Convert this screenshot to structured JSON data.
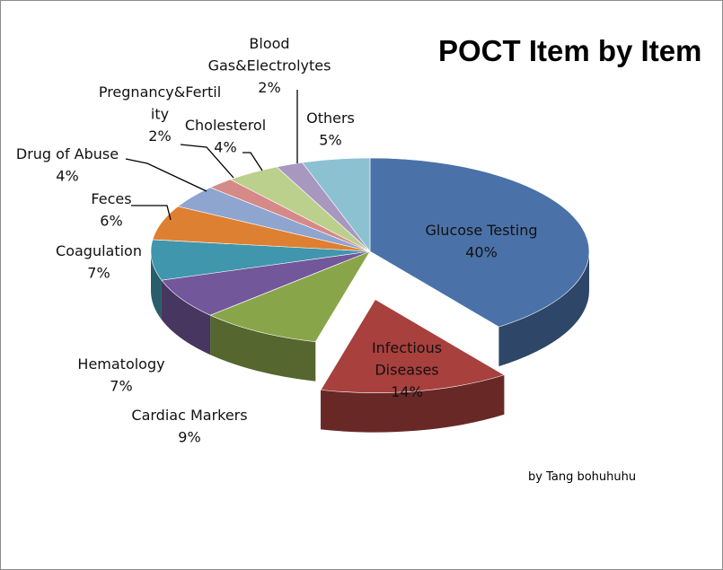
{
  "chart_data": {
    "type": "pie",
    "title": "POCT Item by Item",
    "subtitle": "",
    "annotation": "by Tang bohuhuhu",
    "explode": [
      "Infectious Diseases"
    ],
    "slices": [
      {
        "name": "Glucose Testing",
        "lines": [
          "Glucose Testing",
          "40%"
        ],
        "value": 40,
        "color": "#4a72a8"
      },
      {
        "name": "Infectious Diseases",
        "lines": [
          "Infectious",
          "Diseases",
          "14%"
        ],
        "value": 14,
        "color": "#a8403d"
      },
      {
        "name": "Cardiac Markers",
        "lines": [
          "Cardiac Markers",
          "9%"
        ],
        "value": 9,
        "color": "#89a54a"
      },
      {
        "name": "Hematology",
        "lines": [
          "Hematology",
          "7%"
        ],
        "value": 7,
        "color": "#72579a"
      },
      {
        "name": "Coagulation",
        "lines": [
          "Coagulation",
          "7%"
        ],
        "value": 7,
        "color": "#4096ad"
      },
      {
        "name": "Feces",
        "lines": [
          "Feces",
          "6%"
        ],
        "value": 6,
        "color": "#de8032"
      },
      {
        "name": "Drug of Abuse",
        "lines": [
          "Drug of Abuse",
          "4%"
        ],
        "value": 4,
        "color": "#8ea5d0"
      },
      {
        "name": "Pregnancy&Fertility",
        "lines": [
          "Pregnancy&Fertil",
          "ity",
          "2%"
        ],
        "value": 2,
        "color": "#d68a88"
      },
      {
        "name": "Cholesterol",
        "lines": [
          "Cholesterol",
          "4%"
        ],
        "value": 4,
        "color": "#bcd08d"
      },
      {
        "name": "Blood Gas&Electrolytes",
        "lines": [
          "Blood",
          "Gas&Electrolytes",
          "2%"
        ],
        "value": 2,
        "color": "#a898c0"
      },
      {
        "name": "Others",
        "lines": [
          "Others",
          "5%"
        ],
        "value": 5,
        "color": "#8cc1d2"
      }
    ]
  }
}
